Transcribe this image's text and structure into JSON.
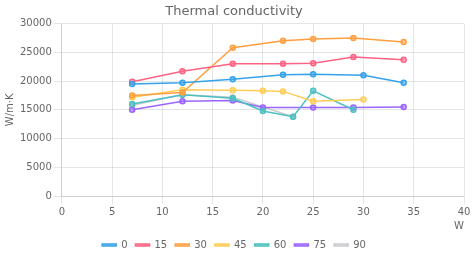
{
  "chart_data": {
    "type": "line",
    "title": "Thermal conductivity",
    "y_label": "W/m·K",
    "x_label": "W",
    "xlim": [
      0,
      40
    ],
    "ylim": [
      0,
      30000
    ],
    "xticks": [
      0,
      5,
      10,
      15,
      20,
      25,
      30,
      35,
      40
    ],
    "yticks": [
      0,
      5000,
      10000,
      15000,
      20000,
      25000,
      30000
    ],
    "grid": true,
    "legend": "bottom",
    "marker": "circle",
    "series": [
      {
        "name": "0",
        "x": [
          7,
          12,
          17,
          22,
          25,
          30,
          34
        ],
        "values": [
          19500,
          19700,
          20300,
          21100,
          21200,
          21000,
          19700
        ]
      },
      {
        "name": "15",
        "x": [
          7,
          12,
          17,
          22,
          25,
          29,
          34
        ],
        "values": [
          19900,
          21700,
          23000,
          23000,
          23100,
          24200,
          23700
        ]
      },
      {
        "name": "30",
        "x": [
          7,
          12,
          17,
          22,
          25,
          29,
          34
        ],
        "values": [
          17500,
          18000,
          25800,
          27000,
          27300,
          27500,
          26800
        ]
      },
      {
        "name": "45",
        "x": [
          7,
          12,
          17,
          20,
          22,
          25,
          30
        ],
        "values": [
          17200,
          18500,
          18400,
          18300,
          18200,
          16500,
          16800
        ]
      },
      {
        "name": "60",
        "x": [
          7,
          12,
          17,
          20,
          23,
          25,
          29
        ],
        "values": [
          16000,
          17600,
          17000,
          14800,
          13800,
          18300,
          15000
        ]
      },
      {
        "name": "75",
        "x": [
          7,
          12,
          17,
          20,
          25,
          29,
          34
        ],
        "values": [
          15000,
          16500,
          16600,
          15400,
          15400,
          15400,
          15500
        ]
      },
      {
        "name": "90",
        "x": [
          7,
          12,
          17,
          23
        ],
        "values": [
          15800,
          17600,
          17200,
          13800
        ]
      }
    ]
  }
}
